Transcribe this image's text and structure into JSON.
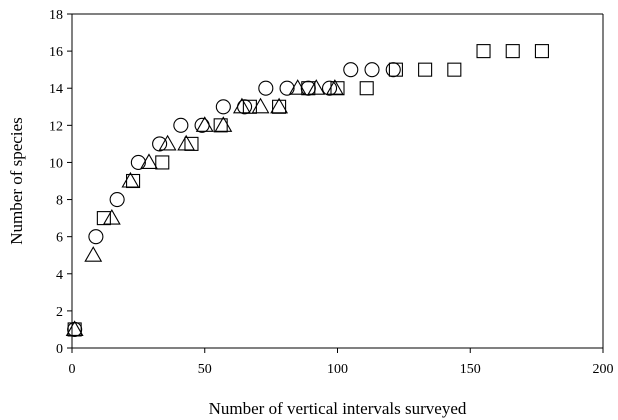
{
  "chart_data": {
    "type": "scatter",
    "title": "",
    "xlabel": "Number of vertical intervals surveyed",
    "ylabel": "Number of species",
    "xlim": [
      0,
      200
    ],
    "ylim": [
      0,
      18
    ],
    "x_ticks": [
      0,
      50,
      100,
      150,
      200
    ],
    "y_ticks": [
      0,
      2,
      4,
      6,
      8,
      10,
      12,
      14,
      16,
      18
    ],
    "grid": false,
    "legend": "none",
    "series": [
      {
        "marker": "circle",
        "points": [
          [
            1,
            1
          ],
          [
            9,
            6
          ],
          [
            17,
            8
          ],
          [
            25,
            10
          ],
          [
            33,
            11
          ],
          [
            41,
            12
          ],
          [
            49,
            12
          ],
          [
            57,
            13
          ],
          [
            65,
            13
          ],
          [
            73,
            14
          ],
          [
            81,
            14
          ],
          [
            89,
            14
          ],
          [
            97,
            14
          ],
          [
            105,
            15
          ],
          [
            113,
            15
          ],
          [
            121,
            15
          ]
        ]
      },
      {
        "marker": "square",
        "points": [
          [
            1,
            1
          ],
          [
            12,
            7
          ],
          [
            23,
            9
          ],
          [
            34,
            10
          ],
          [
            45,
            11
          ],
          [
            56,
            12
          ],
          [
            67,
            13
          ],
          [
            78,
            13
          ],
          [
            89,
            14
          ],
          [
            100,
            14
          ],
          [
            111,
            14
          ],
          [
            122,
            15
          ],
          [
            133,
            15
          ],
          [
            144,
            15
          ],
          [
            155,
            16
          ],
          [
            166,
            16
          ],
          [
            177,
            16
          ]
        ]
      },
      {
        "marker": "triangle",
        "points": [
          [
            1,
            1
          ],
          [
            8,
            5
          ],
          [
            15,
            7
          ],
          [
            22,
            9
          ],
          [
            29,
            10
          ],
          [
            36,
            11
          ],
          [
            43,
            11
          ],
          [
            50,
            12
          ],
          [
            57,
            12
          ],
          [
            64,
            13
          ],
          [
            71,
            13
          ],
          [
            78,
            13
          ],
          [
            85,
            14
          ],
          [
            92,
            14
          ],
          [
            99,
            14
          ]
        ]
      }
    ]
  }
}
